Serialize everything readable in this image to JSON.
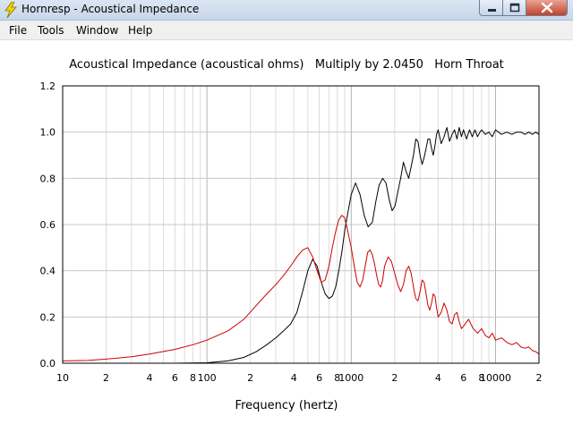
{
  "window": {
    "title": "Hornresp - Acoustical Impedance",
    "icon": "lightning-bolt-icon",
    "controls": [
      "minimize-icon",
      "maximize-icon",
      "close-icon"
    ]
  },
  "menu": {
    "items": [
      {
        "id": "file",
        "label": "File"
      },
      {
        "id": "tools",
        "label": "Tools"
      },
      {
        "id": "window",
        "label": "Window"
      },
      {
        "id": "help",
        "label": "Help"
      }
    ]
  },
  "chart_data": {
    "type": "line",
    "title": "Acoustical Impedance (acoustical ohms)   Multiply by 2.0450   Horn Throat",
    "xlabel": "Frequency (hertz)",
    "ylabel": "",
    "x_scale": "log",
    "xlim": [
      10,
      20000
    ],
    "ylim": [
      0,
      1.2
    ],
    "grid": true,
    "y_ticks": [
      "0.0",
      "0.2",
      "0.4",
      "0.6",
      "0.8",
      "1.0",
      "1.2"
    ],
    "x_ticks": [
      {
        "value": 10,
        "label": "10"
      },
      {
        "value": 20,
        "label": "2"
      },
      {
        "value": 40,
        "label": "4"
      },
      {
        "value": 60,
        "label": "6"
      },
      {
        "value": 80,
        "label": "8"
      },
      {
        "value": 100,
        "label": "100"
      },
      {
        "value": 200,
        "label": "2"
      },
      {
        "value": 400,
        "label": "4"
      },
      {
        "value": 600,
        "label": "6"
      },
      {
        "value": 800,
        "label": "8"
      },
      {
        "value": 1000,
        "label": "1000"
      },
      {
        "value": 2000,
        "label": "2"
      },
      {
        "value": 4000,
        "label": "4"
      },
      {
        "value": 6000,
        "label": "6"
      },
      {
        "value": 8000,
        "label": "8"
      },
      {
        "value": 10000,
        "label": "10000"
      },
      {
        "value": 20000,
        "label": "2"
      }
    ],
    "series": [
      {
        "color": "#000000",
        "x": [
          60,
          100,
          140,
          180,
          220,
          260,
          300,
          340,
          380,
          420,
          460,
          500,
          540,
          580,
          620,
          660,
          700,
          740,
          780,
          820,
          860,
          900,
          940,
          1000,
          1070,
          1150,
          1230,
          1310,
          1400,
          1480,
          1560,
          1650,
          1740,
          1830,
          1920,
          2010,
          2100,
          2200,
          2300,
          2400,
          2500,
          2600,
          2700,
          2800,
          2900,
          3000,
          3100,
          3200,
          3300,
          3400,
          3500,
          3600,
          3700,
          3800,
          3900,
          4000,
          4200,
          4400,
          4600,
          4800,
          5000,
          5200,
          5400,
          5600,
          5800,
          6000,
          6300,
          6600,
          6900,
          7200,
          7500,
          7800,
          8000,
          8500,
          9000,
          9500,
          10000,
          11000,
          12000,
          13000,
          14000,
          15000,
          16000,
          17000,
          18000,
          19000,
          20000
        ],
        "y": [
          0.0,
          0.002,
          0.01,
          0.025,
          0.05,
          0.08,
          0.11,
          0.14,
          0.17,
          0.22,
          0.31,
          0.4,
          0.45,
          0.42,
          0.35,
          0.3,
          0.28,
          0.29,
          0.33,
          0.4,
          0.48,
          0.57,
          0.64,
          0.73,
          0.78,
          0.73,
          0.64,
          0.59,
          0.61,
          0.7,
          0.77,
          0.8,
          0.78,
          0.71,
          0.66,
          0.68,
          0.74,
          0.8,
          0.87,
          0.83,
          0.8,
          0.85,
          0.9,
          0.97,
          0.96,
          0.9,
          0.86,
          0.89,
          0.93,
          0.97,
          0.97,
          0.93,
          0.9,
          0.94,
          0.99,
          1.01,
          0.95,
          0.98,
          1.02,
          0.96,
          0.99,
          1.01,
          0.97,
          1.02,
          0.98,
          1.01,
          0.97,
          1.01,
          0.98,
          1.01,
          0.98,
          1.0,
          1.01,
          0.99,
          1.0,
          0.98,
          1.01,
          0.99,
          1.0,
          0.99,
          1.0,
          1.0,
          0.99,
          1.0,
          0.99,
          1.0,
          0.99
        ]
      },
      {
        "color": "#cc0000",
        "x": [
          10,
          15,
          20,
          30,
          40,
          60,
          80,
          100,
          140,
          180,
          220,
          260,
          300,
          340,
          380,
          420,
          460,
          500,
          540,
          580,
          620,
          660,
          700,
          740,
          780,
          820,
          860,
          900,
          940,
          1000,
          1050,
          1100,
          1150,
          1200,
          1250,
          1300,
          1350,
          1400,
          1450,
          1500,
          1550,
          1600,
          1650,
          1700,
          1800,
          1900,
          2000,
          2100,
          2200,
          2300,
          2400,
          2500,
          2600,
          2700,
          2800,
          2900,
          3000,
          3100,
          3200,
          3300,
          3400,
          3500,
          3600,
          3700,
          3800,
          3900,
          4000,
          4200,
          4400,
          4600,
          4800,
          5000,
          5200,
          5400,
          5600,
          5800,
          6000,
          6500,
          7000,
          7500,
          8000,
          8500,
          9000,
          9500,
          10000,
          11000,
          12000,
          13000,
          14000,
          15000,
          16000,
          17000,
          18000,
          19000,
          20000
        ],
        "y": [
          0.01,
          0.012,
          0.018,
          0.028,
          0.04,
          0.06,
          0.08,
          0.1,
          0.14,
          0.19,
          0.25,
          0.3,
          0.34,
          0.38,
          0.42,
          0.46,
          0.49,
          0.5,
          0.46,
          0.4,
          0.35,
          0.36,
          0.42,
          0.5,
          0.57,
          0.62,
          0.64,
          0.63,
          0.58,
          0.5,
          0.42,
          0.35,
          0.33,
          0.36,
          0.42,
          0.48,
          0.49,
          0.47,
          0.43,
          0.38,
          0.34,
          0.33,
          0.36,
          0.42,
          0.46,
          0.44,
          0.39,
          0.34,
          0.31,
          0.34,
          0.4,
          0.42,
          0.39,
          0.33,
          0.28,
          0.27,
          0.31,
          0.36,
          0.35,
          0.3,
          0.25,
          0.23,
          0.26,
          0.3,
          0.29,
          0.24,
          0.2,
          0.22,
          0.26,
          0.23,
          0.18,
          0.17,
          0.21,
          0.22,
          0.18,
          0.15,
          0.16,
          0.19,
          0.15,
          0.13,
          0.15,
          0.12,
          0.11,
          0.13,
          0.1,
          0.11,
          0.09,
          0.08,
          0.09,
          0.07,
          0.065,
          0.07,
          0.055,
          0.05,
          0.04
        ]
      }
    ]
  }
}
